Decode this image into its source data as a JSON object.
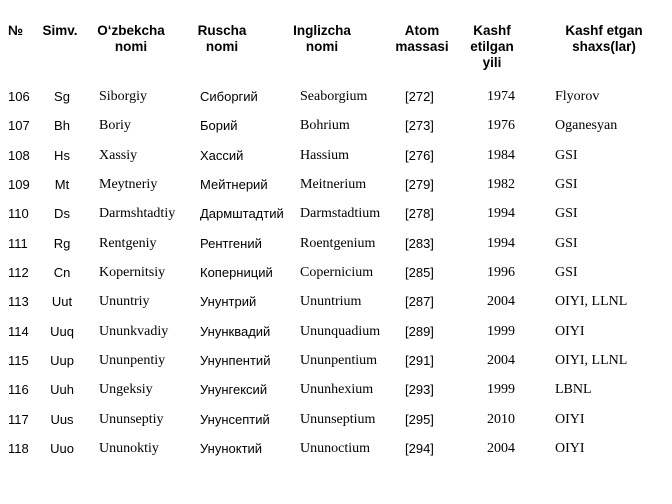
{
  "table": {
    "headers": [
      [
        "№"
      ],
      [
        "Simv."
      ],
      [
        "O‘zbekcha",
        "nomi"
      ],
      [
        "Ruscha",
        "nomi"
      ],
      [
        "Inglizcha",
        "nomi"
      ],
      [
        "Atom",
        "massasi"
      ],
      [
        "Kashf",
        "etilgan",
        "yili"
      ],
      [
        "Kashf etgan",
        "shaxs(lar)"
      ]
    ],
    "rows": [
      [
        "106",
        "Sg",
        "Siborgiy",
        "Сиборгий",
        "Seaborgium",
        "[272]",
        "1974",
        "Flyorov"
      ],
      [
        "107",
        "Bh",
        "Boriy",
        "Борий",
        "Bohrium",
        "[273]",
        "1976",
        "Oganesyan"
      ],
      [
        "108",
        "Hs",
        "Xassiy",
        "Хассий",
        "Hassium",
        "[276]",
        "1984",
        "GSI"
      ],
      [
        "109",
        "Mt",
        "Meytneriy",
        "Мейтнерий",
        "Meitnerium",
        "[279]",
        "1982",
        "GSI"
      ],
      [
        "110",
        "Ds",
        "Darmshtadtiy",
        "Дармштадтий",
        "Darmstadtium",
        "[278]",
        "1994",
        "GSI"
      ],
      [
        "111",
        "Rg",
        "Rentgeniy",
        "Рентгений",
        "Roentgenium",
        "[283]",
        "1994",
        "GSI"
      ],
      [
        "112",
        "Cn",
        "Kopernitsiy",
        "Коперниций",
        "Copernicium",
        "[285]",
        "1996",
        "GSI"
      ],
      [
        "113",
        "Uut",
        "Ununtriy",
        "Унунтрий",
        "Ununtrium",
        "[287]",
        "2004",
        "OIYI, LLNL"
      ],
      [
        "114",
        "Uuq",
        "Ununkvadiy",
        "Унунквадий",
        "Ununquadium",
        "[289]",
        "1999",
        "OIYI"
      ],
      [
        "115",
        "Uup",
        "Ununpentiy",
        "Унунпентий",
        "Ununpentium",
        "[291]",
        "2004",
        "OIYI, LLNL"
      ],
      [
        "116",
        "Uuh",
        "Ungeksiy",
        "Унунгексий",
        "Ununhexium",
        "[293]",
        "1999",
        "LBNL"
      ],
      [
        "117",
        "Uus",
        "Ununseptiy",
        "Унунсептий",
        "Ununseptium",
        "[295]",
        "2010",
        "OIYI"
      ],
      [
        "118",
        "Uuo",
        "Ununoktiy",
        "Унуноктий",
        "Ununoctium",
        "[294]",
        "2004",
        "OIYI"
      ]
    ]
  }
}
